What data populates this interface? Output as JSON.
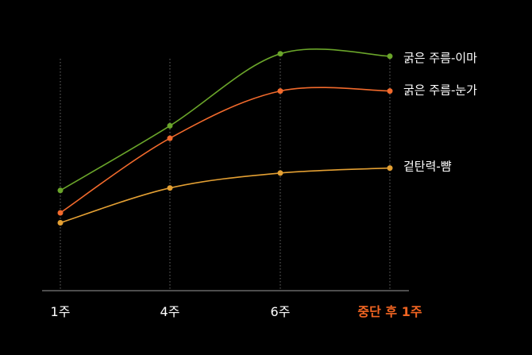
{
  "chart_data": {
    "type": "line",
    "title": "",
    "xlabel": "",
    "ylabel": "",
    "categories": [
      "1주",
      "4주",
      "6주",
      "중단 후 1주"
    ],
    "highlight_category_index": 3,
    "highlight_color": "#f26522",
    "ylim": [
      0,
      100
    ],
    "grid": "vertical-dotted",
    "legend": "direct-labels-right",
    "series": [
      {
        "name": "굵은 주름-이마",
        "color": "#6aa52a",
        "values": [
          40,
          66,
          95,
          94
        ]
      },
      {
        "name": "굵은 주름-눈가",
        "color": "#f26a2c",
        "values": [
          31,
          61,
          80,
          80
        ]
      },
      {
        "name": "겉탄력-뺨",
        "color": "#e4a033",
        "values": [
          27,
          41,
          47,
          49
        ]
      }
    ]
  }
}
